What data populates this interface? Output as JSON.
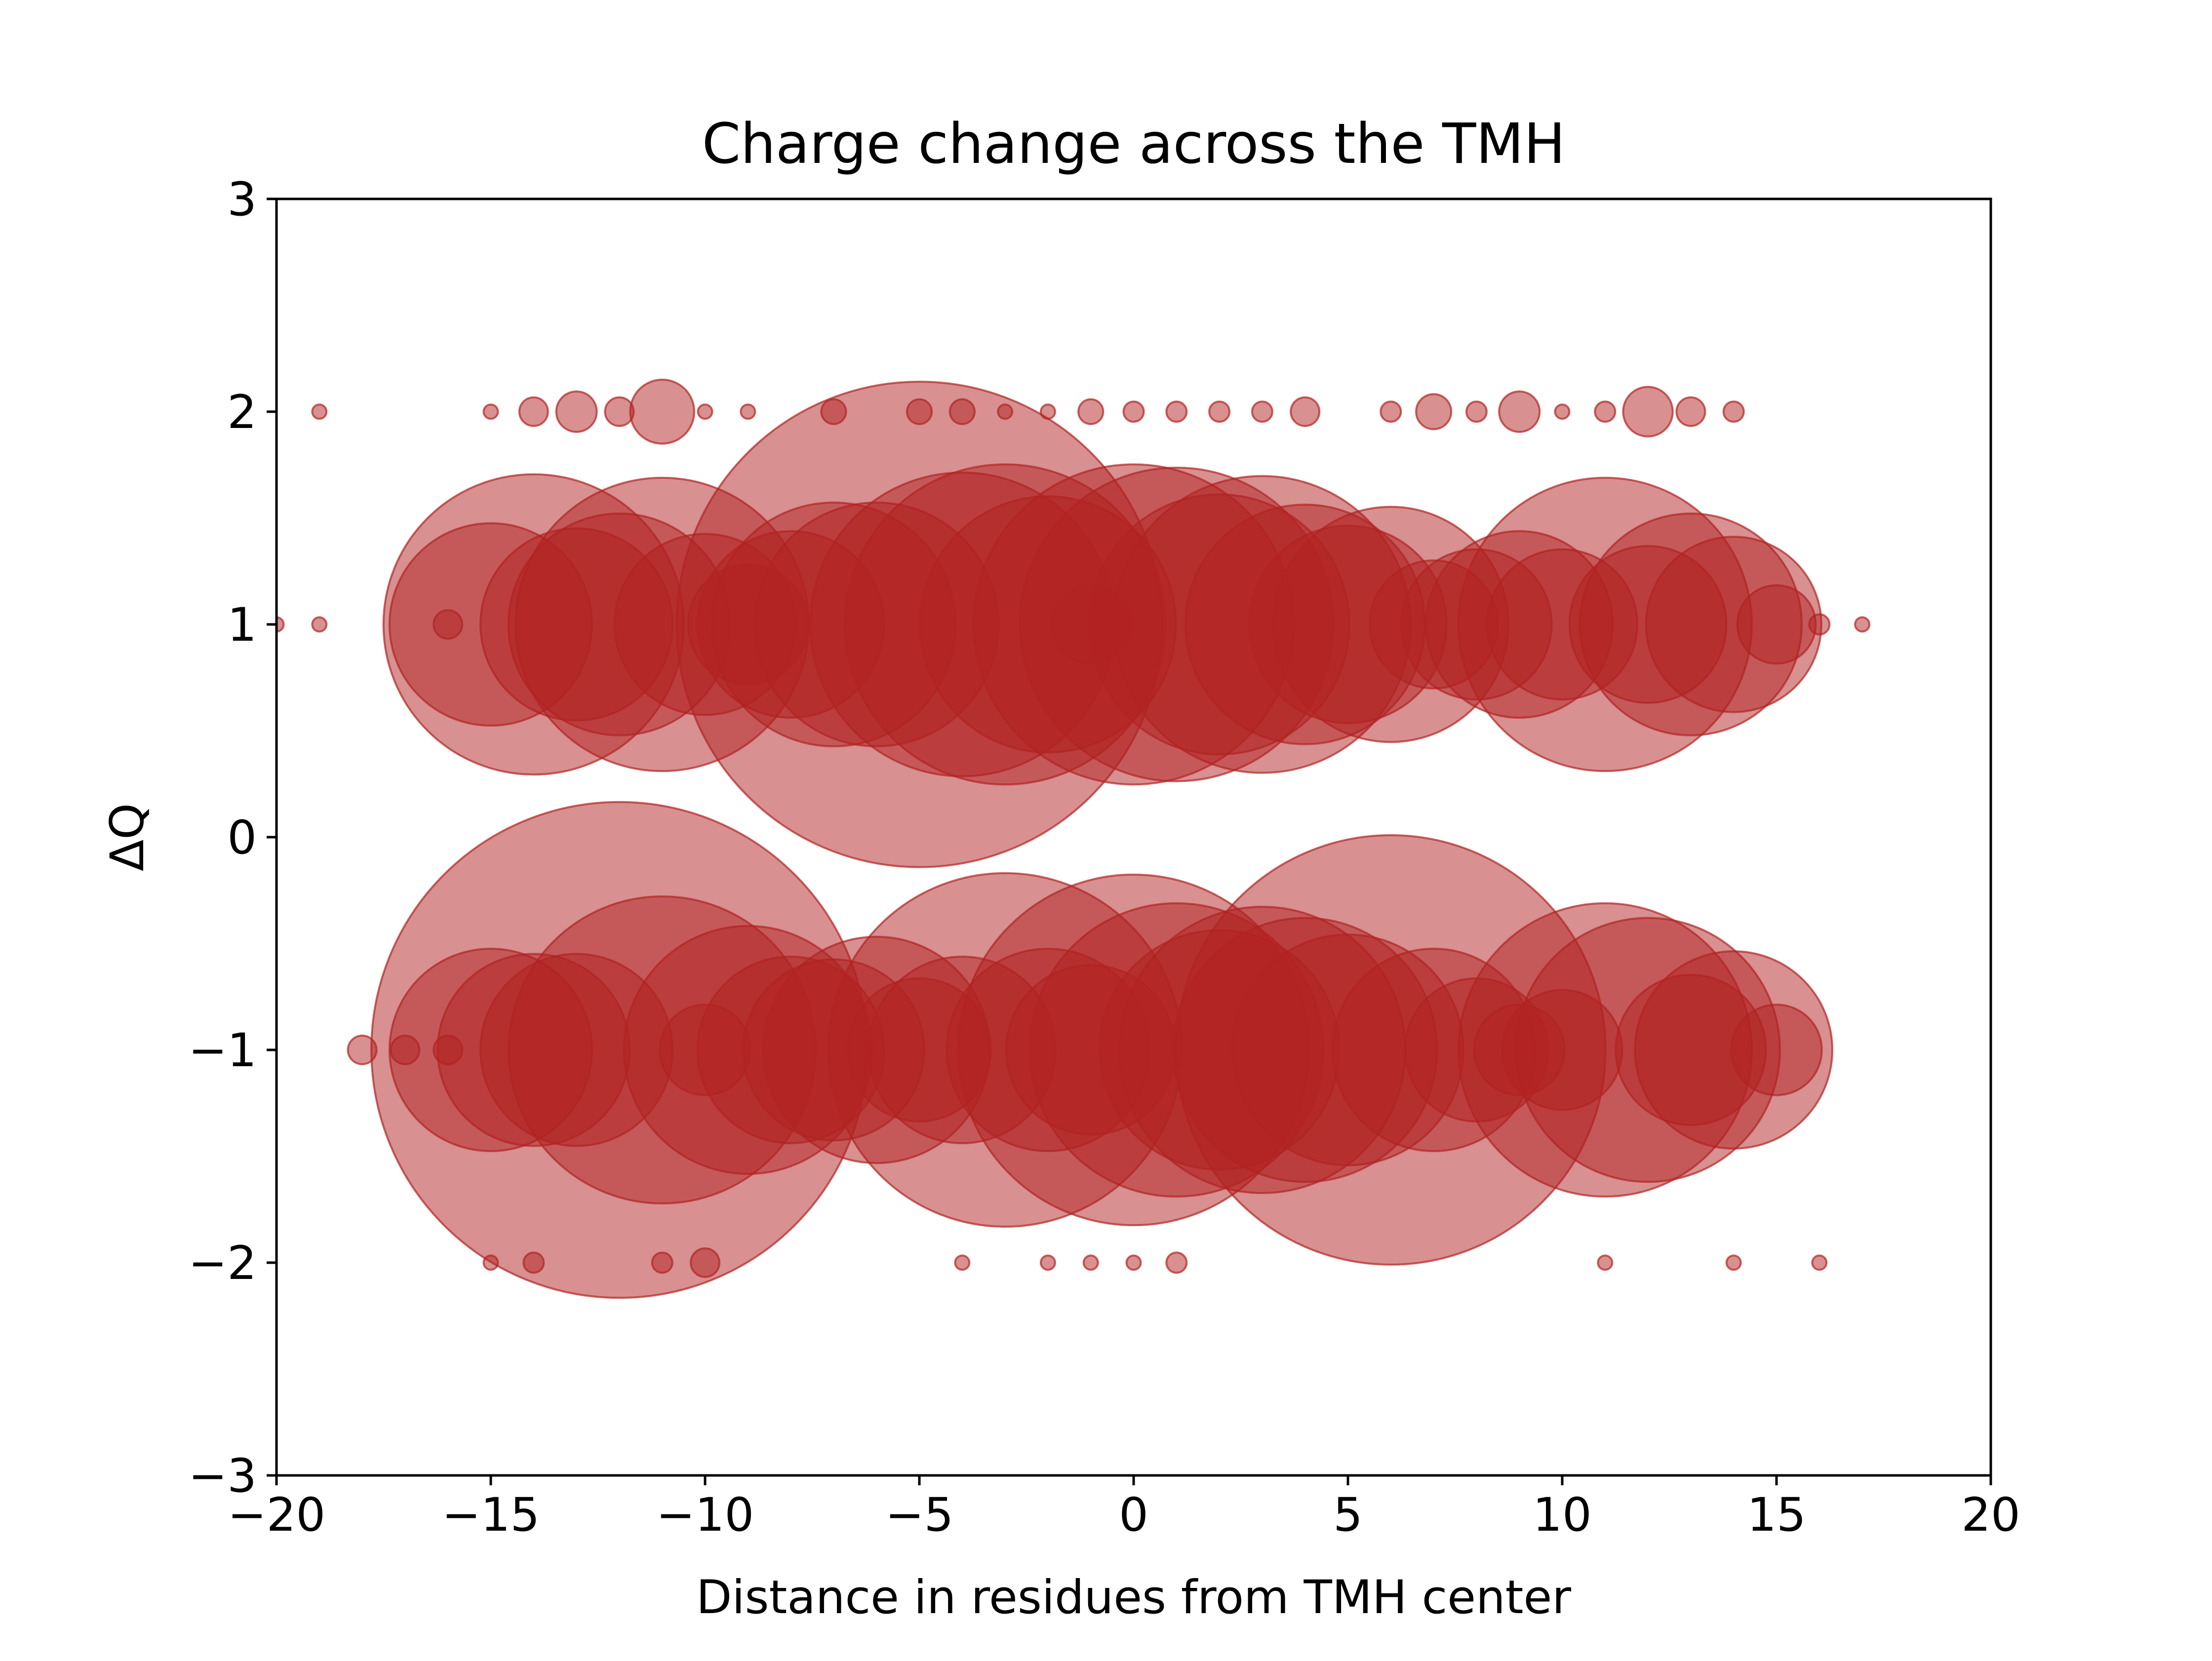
{
  "chart_data": {
    "type": "scatter",
    "title": "Charge change across the TMH",
    "xlabel": "Distance in residues from TMH center",
    "ylabel": "ΔQ",
    "xlim": [
      -20,
      20
    ],
    "ylim": [
      -3,
      3
    ],
    "xticks": [
      -20,
      -15,
      -10,
      -5,
      0,
      5,
      10,
      15,
      20
    ],
    "xtick_labels": [
      "−20",
      "−15",
      "−10",
      "−5",
      "0",
      "5",
      "10",
      "15",
      "20"
    ],
    "yticks": [
      -3,
      -2,
      -1,
      0,
      1,
      2,
      3
    ],
    "ytick_labels": [
      "−3",
      "−2",
      "−1",
      "0",
      "1",
      "2",
      "3"
    ],
    "grid": false,
    "color": "#b22222",
    "size_encoding": "bubble area proportional to count (relative units)",
    "points": [
      {
        "x": -19,
        "y": 2,
        "s": 1
      },
      {
        "x": -15,
        "y": 2,
        "s": 1
      },
      {
        "x": -14,
        "y": 2,
        "s": 4
      },
      {
        "x": -13,
        "y": 2,
        "s": 8
      },
      {
        "x": -12,
        "y": 2,
        "s": 4
      },
      {
        "x": -11,
        "y": 2,
        "s": 20
      },
      {
        "x": -10,
        "y": 2,
        "s": 1
      },
      {
        "x": -9,
        "y": 2,
        "s": 1
      },
      {
        "x": -7,
        "y": 2,
        "s": 3
      },
      {
        "x": -5,
        "y": 2,
        "s": 3
      },
      {
        "x": -4,
        "y": 2,
        "s": 3
      },
      {
        "x": -3,
        "y": 2,
        "s": 1
      },
      {
        "x": -2,
        "y": 2,
        "s": 1
      },
      {
        "x": -1,
        "y": 2,
        "s": 3
      },
      {
        "x": 0,
        "y": 2,
        "s": 2
      },
      {
        "x": 1,
        "y": 2,
        "s": 2
      },
      {
        "x": 2,
        "y": 2,
        "s": 2
      },
      {
        "x": 3,
        "y": 2,
        "s": 2
      },
      {
        "x": 4,
        "y": 2,
        "s": 4
      },
      {
        "x": 6,
        "y": 2,
        "s": 2
      },
      {
        "x": 7,
        "y": 2,
        "s": 6
      },
      {
        "x": 8,
        "y": 2,
        "s": 2
      },
      {
        "x": 9,
        "y": 2,
        "s": 8
      },
      {
        "x": 10,
        "y": 2,
        "s": 1
      },
      {
        "x": 11,
        "y": 2,
        "s": 2
      },
      {
        "x": 12,
        "y": 2,
        "s": 12
      },
      {
        "x": 13,
        "y": 2,
        "s": 4
      },
      {
        "x": 14,
        "y": 2,
        "s": 2
      },
      {
        "x": -20,
        "y": 1,
        "s": 1
      },
      {
        "x": -19,
        "y": 1,
        "s": 1
      },
      {
        "x": -16,
        "y": 1,
        "s": 4
      },
      {
        "x": -15,
        "y": 1,
        "s": 200
      },
      {
        "x": -14,
        "y": 1,
        "s": 440
      },
      {
        "x": -13,
        "y": 1,
        "s": 180
      },
      {
        "x": -12,
        "y": 1,
        "s": 240
      },
      {
        "x": -11,
        "y": 1,
        "s": 420
      },
      {
        "x": -10,
        "y": 1,
        "s": 160
      },
      {
        "x": -9,
        "y": 1,
        "s": 70
      },
      {
        "x": -8,
        "y": 1,
        "s": 170
      },
      {
        "x": -7,
        "y": 1,
        "s": 290
      },
      {
        "x": -6,
        "y": 1,
        "s": 290
      },
      {
        "x": -5,
        "y": 1,
        "s": 1150
      },
      {
        "x": -4,
        "y": 1,
        "s": 450
      },
      {
        "x": -3,
        "y": 1,
        "s": 500
      },
      {
        "x": -2,
        "y": 1,
        "s": 320
      },
      {
        "x": -1,
        "y": 1,
        "s": 30
      },
      {
        "x": 0,
        "y": 1,
        "s": 500
      },
      {
        "x": 1,
        "y": 1,
        "s": 480
      },
      {
        "x": 2,
        "y": 1,
        "s": 330
      },
      {
        "x": 3,
        "y": 1,
        "s": 430
      },
      {
        "x": 4,
        "y": 1,
        "s": 280
      },
      {
        "x": 5,
        "y": 1,
        "s": 190
      },
      {
        "x": 6,
        "y": 1,
        "s": 270
      },
      {
        "x": 7,
        "y": 1,
        "s": 80
      },
      {
        "x": 8,
        "y": 1,
        "s": 110
      },
      {
        "x": 9,
        "y": 1,
        "s": 170
      },
      {
        "x": 10,
        "y": 1,
        "s": 110
      },
      {
        "x": 11,
        "y": 1,
        "s": 420
      },
      {
        "x": 12,
        "y": 1,
        "s": 120
      },
      {
        "x": 13,
        "y": 1,
        "s": 240
      },
      {
        "x": 14,
        "y": 1,
        "s": 150
      },
      {
        "x": 15,
        "y": 1,
        "s": 30
      },
      {
        "x": 16,
        "y": 1,
        "s": 2
      },
      {
        "x": 17,
        "y": 1,
        "s": 1
      },
      {
        "x": -18,
        "y": -1,
        "s": 4
      },
      {
        "x": -17,
        "y": -1,
        "s": 4
      },
      {
        "x": -16,
        "y": -1,
        "s": 4
      },
      {
        "x": -15,
        "y": -1,
        "s": 200
      },
      {
        "x": -14,
        "y": -1,
        "s": 180
      },
      {
        "x": -13,
        "y": -1,
        "s": 180
      },
      {
        "x": -12,
        "y": -1,
        "s": 1200
      },
      {
        "x": -11,
        "y": -1,
        "s": 460
      },
      {
        "x": -10,
        "y": -1,
        "s": 40
      },
      {
        "x": -9,
        "y": -1,
        "s": 300
      },
      {
        "x": -8,
        "y": -1,
        "s": 170
      },
      {
        "x": -7,
        "y": -1,
        "s": 160
      },
      {
        "x": -6,
        "y": -1,
        "s": 250
      },
      {
        "x": -5,
        "y": -1,
        "s": 100
      },
      {
        "x": -4,
        "y": -1,
        "s": 170
      },
      {
        "x": -3,
        "y": -1,
        "s": 610
      },
      {
        "x": -2,
        "y": -1,
        "s": 200
      },
      {
        "x": -1,
        "y": -1,
        "s": 140
      },
      {
        "x": 0,
        "y": -1,
        "s": 600
      },
      {
        "x": 1,
        "y": -1,
        "s": 420
      },
      {
        "x": 2,
        "y": -1,
        "s": 280
      },
      {
        "x": 3,
        "y": -1,
        "s": 400
      },
      {
        "x": 4,
        "y": -1,
        "s": 340
      },
      {
        "x": 5,
        "y": -1,
        "s": 260
      },
      {
        "x": 6,
        "y": -1,
        "s": 900
      },
      {
        "x": 7,
        "y": -1,
        "s": 200
      },
      {
        "x": 8,
        "y": -1,
        "s": 100
      },
      {
        "x": 9,
        "y": -1,
        "s": 40
      },
      {
        "x": 10,
        "y": -1,
        "s": 70
      },
      {
        "x": 11,
        "y": -1,
        "s": 420
      },
      {
        "x": 12,
        "y": -1,
        "s": 340
      },
      {
        "x": 13,
        "y": -1,
        "s": 110
      },
      {
        "x": 14,
        "y": -1,
        "s": 190
      },
      {
        "x": 15,
        "y": -1,
        "s": 40
      },
      {
        "x": -15,
        "y": -2,
        "s": 1
      },
      {
        "x": -14,
        "y": -2,
        "s": 2
      },
      {
        "x": -11,
        "y": -2,
        "s": 2
      },
      {
        "x": -10,
        "y": -2,
        "s": 4
      },
      {
        "x": -4,
        "y": -2,
        "s": 1
      },
      {
        "x": -2,
        "y": -2,
        "s": 1
      },
      {
        "x": -1,
        "y": -2,
        "s": 1
      },
      {
        "x": 0,
        "y": -2,
        "s": 1
      },
      {
        "x": 1,
        "y": -2,
        "s": 2
      },
      {
        "x": 11,
        "y": -2,
        "s": 1
      },
      {
        "x": 14,
        "y": -2,
        "s": 1
      },
      {
        "x": 16,
        "y": -2,
        "s": 1
      }
    ]
  }
}
